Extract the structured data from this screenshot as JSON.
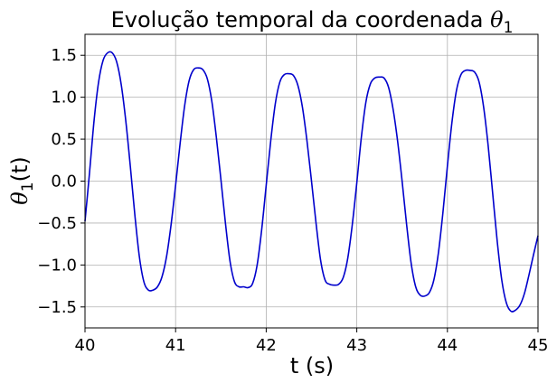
{
  "chart_data": {
    "type": "line",
    "title": "Evolução temporal da coordenada θ₁",
    "title_text": "Evolução temporal da coordenada ",
    "title_symbol": "θ",
    "title_subscript": "1",
    "xlabel": "t (s)",
    "ylabel": "θ₁(t)",
    "ylabel_symbol": "θ",
    "ylabel_subscript": "1",
    "ylabel_suffix": "(t)",
    "xlim": [
      40,
      45
    ],
    "ylim": [
      -1.75,
      1.75
    ],
    "x_ticks": [
      40,
      41,
      42,
      43,
      44,
      45
    ],
    "y_ticks": [
      -1.5,
      -1.0,
      -0.5,
      0.0,
      0.5,
      1.0,
      1.5
    ],
    "x_tick_labels": [
      "40",
      "41",
      "42",
      "43",
      "44",
      "45"
    ],
    "y_tick_labels": [
      "−1.5",
      "−1.0",
      "−0.5",
      "0.0",
      "0.5",
      "1.0",
      "1.5"
    ],
    "grid": true,
    "series": [
      {
        "color": "#0000cc",
        "x": [
          40.0,
          40.05,
          40.1,
          40.15,
          40.2,
          40.25,
          40.3,
          40.35,
          40.4,
          40.45,
          40.5,
          40.55,
          40.6,
          40.65,
          40.7,
          40.75,
          40.8,
          40.85,
          40.9,
          40.95,
          41.0,
          41.05,
          41.1,
          41.15,
          41.2,
          41.25,
          41.3,
          41.35,
          41.4,
          41.45,
          41.5,
          41.55,
          41.6,
          41.65,
          41.7,
          41.75,
          41.8,
          41.85,
          41.9,
          41.95,
          42.0,
          42.05,
          42.1,
          42.15,
          42.2,
          42.25,
          42.3,
          42.35,
          42.4,
          42.45,
          42.5,
          42.55,
          42.6,
          42.65,
          42.7,
          42.75,
          42.8,
          42.85,
          42.9,
          42.95,
          43.0,
          43.05,
          43.1,
          43.15,
          43.2,
          43.25,
          43.3,
          43.35,
          43.4,
          43.45,
          43.5,
          43.55,
          43.6,
          43.65,
          43.7,
          43.75,
          43.8,
          43.85,
          43.9,
          43.95,
          44.0,
          44.05,
          44.1,
          44.15,
          44.2,
          44.25,
          44.3,
          44.35,
          44.4,
          44.45,
          44.5,
          44.55,
          44.6,
          44.65,
          44.7,
          44.75,
          44.8,
          44.85,
          44.9,
          44.95,
          45.0
        ],
        "y": [
          -0.48,
          0.1,
          0.72,
          1.18,
          1.44,
          1.53,
          1.53,
          1.42,
          1.15,
          0.72,
          0.18,
          -0.4,
          -0.9,
          -1.2,
          -1.3,
          -1.3,
          -1.26,
          -1.14,
          -0.9,
          -0.52,
          -0.05,
          0.45,
          0.9,
          1.2,
          1.33,
          1.35,
          1.33,
          1.22,
          0.95,
          0.52,
          0.02,
          -0.5,
          -0.95,
          -1.2,
          -1.26,
          -1.26,
          -1.27,
          -1.22,
          -1.0,
          -0.58,
          -0.05,
          0.48,
          0.92,
          1.18,
          1.27,
          1.28,
          1.26,
          1.14,
          0.88,
          0.48,
          0.0,
          -0.5,
          -0.94,
          -1.18,
          -1.23,
          -1.24,
          -1.23,
          -1.15,
          -0.92,
          -0.52,
          -0.02,
          0.52,
          0.94,
          1.16,
          1.23,
          1.24,
          1.23,
          1.12,
          0.86,
          0.48,
          0.0,
          -0.52,
          -0.98,
          -1.26,
          -1.36,
          -1.37,
          -1.33,
          -1.18,
          -0.86,
          -0.38,
          0.18,
          0.7,
          1.08,
          1.27,
          1.32,
          1.32,
          1.3,
          1.18,
          0.88,
          0.42,
          -0.15,
          -0.72,
          -1.18,
          -1.45,
          -1.55,
          -1.54,
          -1.48,
          -1.34,
          -1.12,
          -0.88,
          -0.65
        ]
      }
    ]
  }
}
